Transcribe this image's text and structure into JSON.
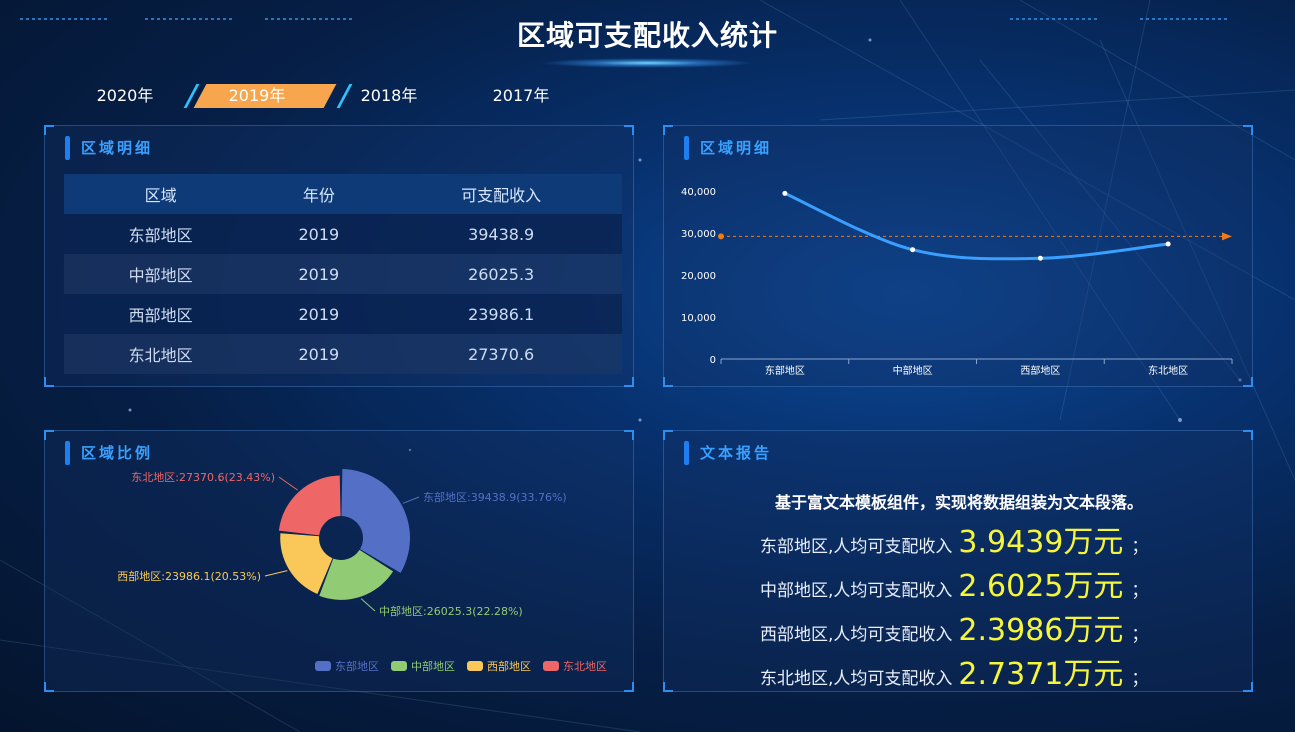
{
  "header": {
    "title": "区域可支配收入统计"
  },
  "tabs": [
    {
      "label": "2020年",
      "active": false
    },
    {
      "label": "2019年",
      "active": true
    },
    {
      "label": "2018年",
      "active": false
    },
    {
      "label": "2017年",
      "active": false
    }
  ],
  "table_panel": {
    "title": "区域明细",
    "columns": [
      "区域",
      "年份",
      "可支配收入"
    ],
    "rows": [
      [
        "东部地区",
        "2019",
        "39438.9"
      ],
      [
        "中部地区",
        "2019",
        "26025.3"
      ],
      [
        "西部地区",
        "2019",
        "23986.1"
      ],
      [
        "东北地区",
        "2019",
        "27370.6"
      ]
    ]
  },
  "line_panel": {
    "title": "区域明细"
  },
  "pie_panel": {
    "title": "区域比例"
  },
  "report_panel": {
    "title": "文本报告",
    "intro": "基于富文本模板组件，实现将数据组装为文本段落。",
    "lines": [
      {
        "label": "东部地区,人均可支配收入",
        "value": "3.9439",
        "unit": "万元",
        "end": "；"
      },
      {
        "label": "中部地区,人均可支配收入",
        "value": "2.6025",
        "unit": "万元",
        "end": "；"
      },
      {
        "label": "西部地区,人均可支配收入",
        "value": "2.3986",
        "unit": "万元",
        "end": "；"
      },
      {
        "label": "东北地区,人均可支配收入",
        "value": "2.7371",
        "unit": "万元",
        "end": "；"
      }
    ]
  },
  "chart_data": [
    {
      "type": "line",
      "categories": [
        "东部地区",
        "中部地区",
        "西部地区",
        "东北地区"
      ],
      "values": [
        39438.9,
        26025.3,
        23986.1,
        27370.6
      ],
      "ylim": [
        0,
        40000
      ],
      "yticks": [
        "0",
        "10,000",
        "20,000",
        "30,000",
        "40,000"
      ],
      "markline_value": 29205.2,
      "line_color": "#3aa0ff",
      "markline_color": "#f07a1a"
    },
    {
      "type": "pie",
      "categories": [
        "东部地区",
        "中部地区",
        "西部地区",
        "东北地区"
      ],
      "values": [
        39438.9,
        26025.3,
        23986.1,
        27370.6
      ],
      "percents": [
        33.76,
        22.28,
        20.53,
        23.43
      ],
      "labels": [
        "东部地区:39438.9(33.76%)",
        "中部地区:26025.3(22.28%)",
        "西部地区:23986.1(20.53%)",
        "东北地区:27370.6(23.43%)"
      ],
      "colors": [
        "#5470c6",
        "#91cc75",
        "#fac858",
        "#ee6666"
      ],
      "legend": [
        "东部地区",
        "中部地区",
        "西部地区",
        "东北地区"
      ],
      "legend_position": "bottom-right"
    }
  ]
}
